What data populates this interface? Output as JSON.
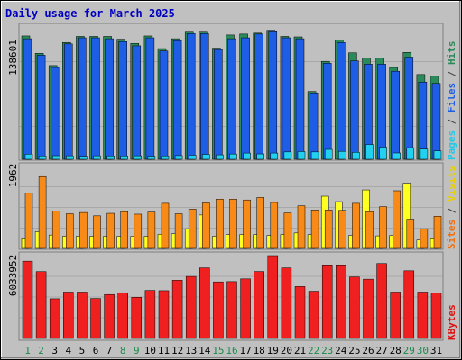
{
  "chart_data": {
    "type": "bar",
    "title": "Daily usage for March 2025",
    "categories": [
      "1",
      "2",
      "3",
      "4",
      "5",
      "6",
      "7",
      "8",
      "9",
      "10",
      "11",
      "12",
      "13",
      "14",
      "15",
      "16",
      "17",
      "18",
      "19",
      "20",
      "21",
      "22",
      "23",
      "24",
      "25",
      "26",
      "27",
      "28",
      "29",
      "30",
      "31"
    ],
    "weekend_days": [
      "1",
      "2",
      "8",
      "9",
      "15",
      "16",
      "22",
      "23",
      "29",
      "30"
    ],
    "panels": [
      {
        "id": "hits-files-pages",
        "axis_max": "138601",
        "ylim": [
          0,
          138601
        ],
        "legend": [
          "Pages",
          "/",
          "Files",
          "/",
          "Hits"
        ],
        "series": [
          {
            "name": "Hits",
            "color": "#2c8a5a",
            "values": [
              131000,
              112500,
              99500,
              124000,
              130500,
              130500,
              130500,
              127500,
              123000,
              131000,
              117500,
              128000,
              135000,
              135000,
              118000,
              132000,
              133000,
              134000,
              137000,
              130500,
              130000,
              72000,
              104000,
              126500,
              113000,
              107500,
              107500,
              97500,
              113500,
              90000,
              88500
            ]
          },
          {
            "name": "Files",
            "color": "#1e5ee6",
            "values": [
              128000,
              110500,
              97500,
              122500,
              129000,
              129000,
              128000,
              125000,
              120500,
              129000,
              115000,
              126000,
              133500,
              133500,
              116500,
              128000,
              129000,
              133000,
              135500,
              129000,
              128000,
              70500,
              102000,
              124000,
              104500,
              101000,
              101000,
              93500,
              108500,
              82000,
              80500
            ]
          },
          {
            "name": "Pages",
            "color": "#22d0f0",
            "values": [
              5500,
              3600,
              3800,
              3700,
              3200,
              3700,
              3600,
              3600,
              3700,
              3300,
              3600,
              3900,
              4300,
              5200,
              4700,
              5600,
              6600,
              5700,
              6600,
              7800,
              8200,
              7800,
              10500,
              8400,
              7400,
              15700,
              12900,
              6700,
              12300,
              10800,
              8900
            ]
          }
        ]
      },
      {
        "id": "visits-sites",
        "axis_max": "1962",
        "ylim": [
          0,
          1962
        ],
        "legend": [
          "Sites",
          "/",
          "Visits"
        ],
        "series": [
          {
            "name": "Visits",
            "color": "#f88a18",
            "values": [
              1320,
              1720,
              900,
              830,
              860,
              780,
              840,
              880,
              820,
              870,
              1080,
              830,
              940,
              1090,
              1180,
              1180,
              1160,
              1220,
              1100,
              850,
              1020,
              920,
              920,
              910,
              1080,
              880,
              1000,
              1380,
              700,
              470,
              770
            ]
          },
          {
            "name": "Sites",
            "color": "#ffff20",
            "values": [
              230,
              400,
              320,
              290,
              290,
              290,
              290,
              290,
              290,
              290,
              340,
              350,
              470,
              800,
              290,
              330,
              330,
              330,
              310,
              330,
              370,
              330,
              1250,
              1120,
              310,
              1400,
              300,
              310,
              1560,
              200,
              230
            ]
          }
        ]
      },
      {
        "id": "kbytes",
        "axis_max": "6033952",
        "ylim": [
          0,
          6033952
        ],
        "legend": [
          "KBytes"
        ],
        "series": [
          {
            "name": "KBytes",
            "color": "#f02020",
            "values": [
              5630000,
              4870000,
              2890000,
              3380000,
              3380000,
              2910000,
              3200000,
              3330000,
              3000000,
              3500000,
              3480000,
              4240000,
              4520000,
              5140000,
              4120000,
              4140000,
              4340000,
              4880000,
              6033952,
              5140000,
              3780000,
              3440000,
              5360000,
              5360000,
              4480000,
              4320000,
              5460000,
              3380000,
              4930000,
              3380000,
              3300000
            ]
          }
        ]
      }
    ]
  }
}
